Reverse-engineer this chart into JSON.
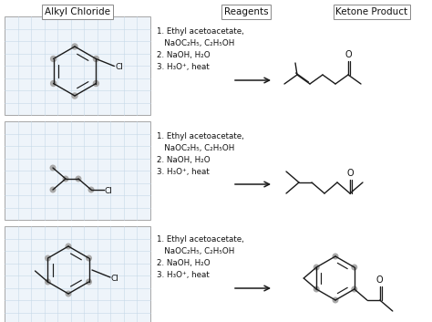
{
  "bg_color": "#ffffff",
  "grid_color": "#c5d8e8",
  "line_color": "#1a1a1a",
  "text_color": "#111111",
  "headers": [
    "Alkyl Chloride",
    "Reagents",
    "Ketone Product"
  ],
  "reagent_lines": [
    "1. Ethyl acetoacetate,",
    "   NaOC₂H₅, C₂H₅OH",
    "2. NaOH, H₂O",
    "3. H₃O⁺, heat"
  ],
  "figsize": [
    4.74,
    3.53
  ],
  "dpi": 100
}
